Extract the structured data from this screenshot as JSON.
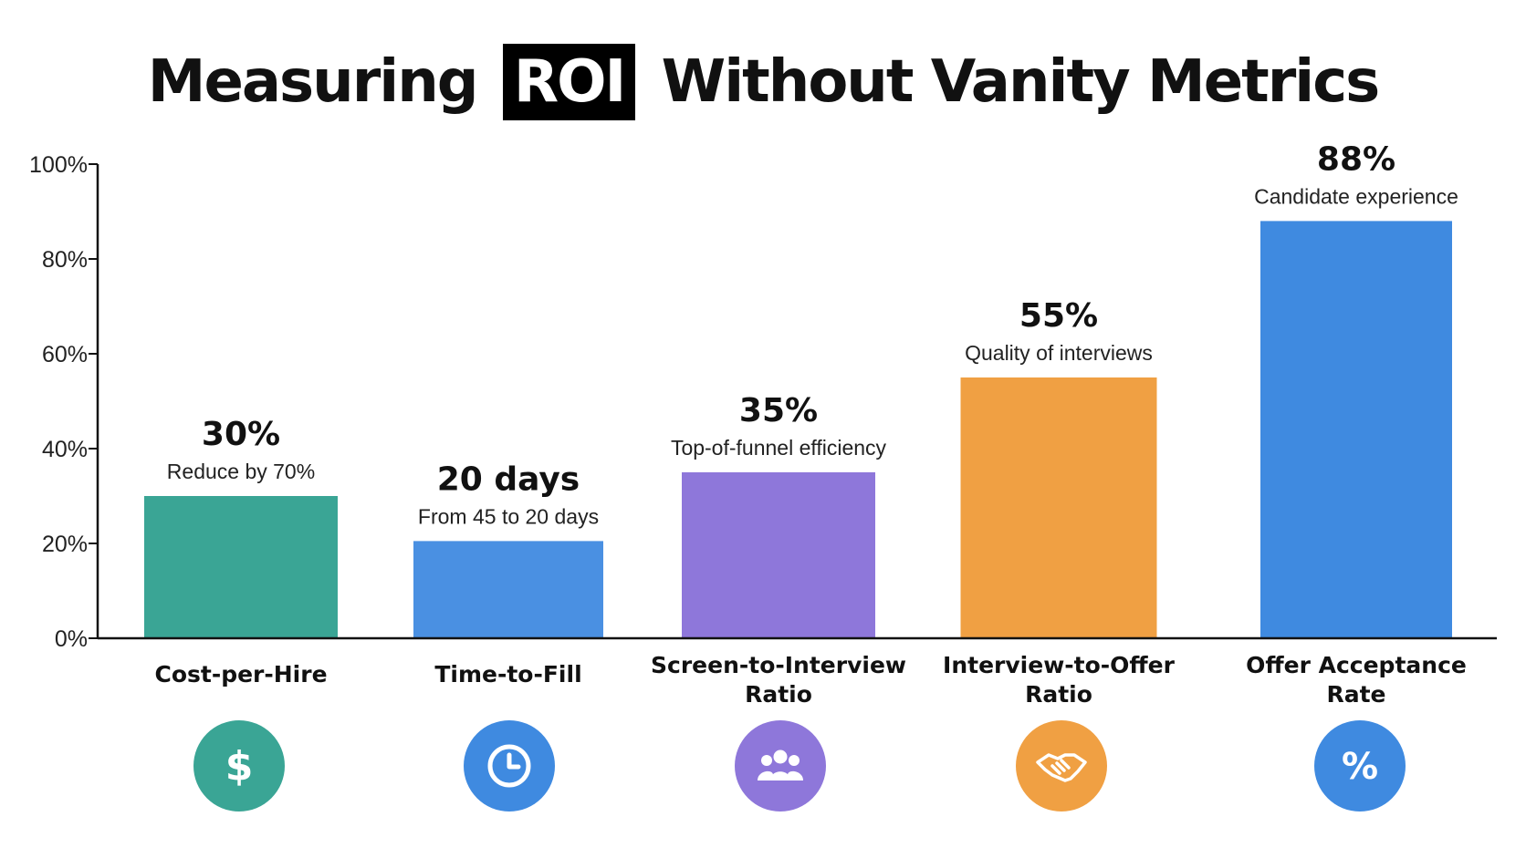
{
  "title": {
    "before": "Measuring",
    "highlight": "ROI",
    "after": "Without Vanity Metrics"
  },
  "colors": {
    "teal": "#3aa595",
    "blue": "#4a90e2",
    "purple": "#8e77da",
    "orange": "#f0a043",
    "blue2": "#3f8ae0",
    "axis": "#111111"
  },
  "chart_data": {
    "type": "bar",
    "ylim": [
      0,
      100
    ],
    "yticks": [
      0,
      20,
      40,
      60,
      80,
      100
    ],
    "ytick_labels": [
      "0%",
      "20%",
      "40%",
      "60%",
      "80%",
      "100%"
    ],
    "grid": false,
    "categories": [
      [
        "Cost-per-Hire"
      ],
      [
        "Time-to-Fill"
      ],
      [
        "Screen-to-Interview",
        "Ratio"
      ],
      [
        "Interview-to-Offer",
        "Ratio"
      ],
      [
        "Offer Acceptance",
        "Rate"
      ]
    ],
    "values": [
      30,
      20.5,
      35,
      55,
      88
    ],
    "value_labels": [
      "30%",
      "20 days",
      "35%",
      "55%",
      "88%"
    ],
    "annotations": [
      "Reduce by 70%",
      "From 45 to 20 days",
      "Top-of-funnel efficiency",
      "Quality of interviews",
      "Candidate experience"
    ],
    "bar_colors": [
      "#3aa595",
      "#4a90e2",
      "#8e77da",
      "#f0a043",
      "#3f8ae0"
    ],
    "icons": [
      "dollar-icon",
      "clock-icon",
      "people-icon",
      "handshake-icon",
      "percent-icon"
    ]
  }
}
